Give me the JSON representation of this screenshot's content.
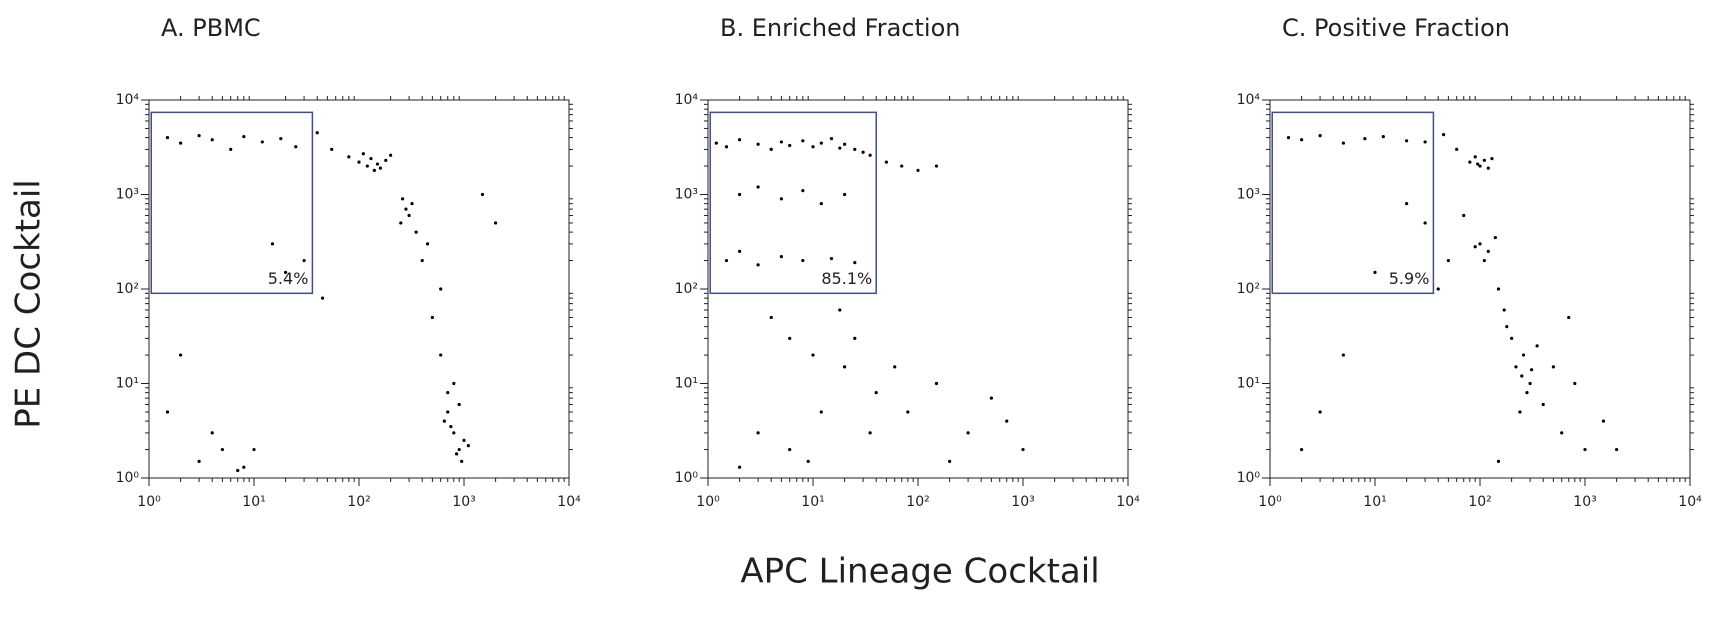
{
  "xlabel": "APC Lineage Cocktail",
  "ylabel": "PE  DC Cocktail",
  "chart_data": [
    {
      "type": "scatter",
      "title": "A.  PBMC",
      "color": "#000000",
      "xscale": "log",
      "yscale": "log",
      "xlim": [
        1,
        10000
      ],
      "ylim": [
        1,
        10000
      ],
      "xticks": [
        {
          "value": 1,
          "label": "10⁰"
        },
        {
          "value": 10,
          "label": "10¹"
        },
        {
          "value": 100,
          "label": "10²"
        },
        {
          "value": 1000,
          "label": "10³"
        },
        {
          "value": 10000,
          "label": "10⁴"
        }
      ],
      "yticks": [
        {
          "value": 1,
          "label": "10⁰"
        },
        {
          "value": 10,
          "label": "10¹"
        },
        {
          "value": 100,
          "label": "10²"
        },
        {
          "value": 1000,
          "label": "10³"
        },
        {
          "value": 10000,
          "label": "10⁴"
        }
      ],
      "minorticks": [
        2,
        3,
        4,
        5,
        6,
        7,
        8,
        9,
        20,
        30,
        40,
        50,
        60,
        70,
        80,
        90,
        200,
        300,
        400,
        500,
        600,
        700,
        800,
        900,
        2000,
        3000,
        4000,
        5000,
        6000,
        7000,
        8000,
        9000
      ],
      "gate": {
        "x": [
          1.05,
          36
        ],
        "y": [
          90,
          7400
        ],
        "label": "5.4%",
        "color": "#3c4e8c"
      },
      "x": [
        1.5,
        2,
        3,
        4,
        6,
        8,
        12,
        18,
        25,
        40,
        55,
        80,
        100,
        120,
        130,
        150,
        160,
        180,
        200,
        140,
        110,
        250,
        280,
        300,
        320,
        350,
        260,
        400,
        500,
        600,
        700,
        800,
        900,
        1000,
        750,
        850,
        650,
        950,
        1100,
        700,
        800,
        900,
        3,
        5,
        7,
        15,
        20,
        2,
        1.5,
        30,
        45,
        600,
        450,
        1500,
        2000,
        10,
        8,
        4
      ],
      "y": [
        4000,
        3500,
        4200,
        3800,
        3000,
        4100,
        3600,
        3900,
        3200,
        4500,
        3000,
        2500,
        2200,
        2000,
        2400,
        2100,
        1900,
        2300,
        2600,
        1800,
        2700,
        500,
        700,
        600,
        800,
        400,
        900,
        200,
        50,
        20,
        5,
        3,
        2,
        2.5,
        3.5,
        1.8,
        4,
        1.5,
        2.2,
        8,
        10,
        6,
        1.5,
        2,
        1.2,
        300,
        150,
        20,
        5,
        200,
        80,
        100,
        300,
        1000,
        500,
        2,
        1.3,
        3
      ]
    },
    {
      "type": "scatter",
      "title": "B.  Enriched Fraction",
      "color": "#000000",
      "xscale": "log",
      "yscale": "log",
      "xlim": [
        1,
        10000
      ],
      "ylim": [
        1,
        10000
      ],
      "xticks": [
        {
          "value": 1,
          "label": "10⁰"
        },
        {
          "value": 10,
          "label": "10¹"
        },
        {
          "value": 100,
          "label": "10²"
        },
        {
          "value": 1000,
          "label": "10³"
        },
        {
          "value": 10000,
          "label": "10⁴"
        }
      ],
      "yticks": [
        {
          "value": 1,
          "label": "10⁰"
        },
        {
          "value": 10,
          "label": "10¹"
        },
        {
          "value": 100,
          "label": "10²"
        },
        {
          "value": 1000,
          "label": "10³"
        },
        {
          "value": 10000,
          "label": "10⁴"
        }
      ],
      "minorticks": [
        2,
        3,
        4,
        5,
        6,
        7,
        8,
        9,
        20,
        30,
        40,
        50,
        60,
        70,
        80,
        90,
        200,
        300,
        400,
        500,
        600,
        700,
        800,
        900,
        2000,
        3000,
        4000,
        5000,
        6000,
        7000,
        8000,
        9000
      ],
      "gate": {
        "x": [
          1.05,
          40
        ],
        "y": [
          90,
          7400
        ],
        "label": "85.1%",
        "color": "#3c4e8c"
      },
      "x": [
        1.2,
        1.5,
        2,
        3,
        4,
        5,
        6,
        8,
        10,
        12,
        15,
        18,
        20,
        25,
        30,
        35,
        50,
        70,
        100,
        150,
        2,
        3,
        5,
        8,
        12,
        20,
        1.5,
        2,
        3,
        5,
        8,
        15,
        25,
        4,
        6,
        10,
        20,
        40,
        80,
        150,
        300,
        500,
        1000,
        3,
        6,
        12,
        25,
        60,
        200,
        700,
        2,
        9,
        18,
        35
      ],
      "y": [
        3500,
        3200,
        3800,
        3400,
        3000,
        3600,
        3300,
        3700,
        3200,
        3500,
        3900,
        3100,
        3400,
        3000,
        2800,
        2600,
        2200,
        2000,
        1800,
        2000,
        1000,
        1200,
        900,
        1100,
        800,
        1000,
        200,
        250,
        180,
        220,
        200,
        210,
        190,
        50,
        30,
        20,
        15,
        8,
        5,
        10,
        3,
        7,
        2,
        3,
        2,
        5,
        30,
        15,
        1.5,
        4,
        1.3,
        1.5,
        60,
        3
      ]
    },
    {
      "type": "scatter",
      "title": "C.  Positive Fraction",
      "color": "#000000",
      "xscale": "log",
      "yscale": "log",
      "xlim": [
        1,
        10000
      ],
      "ylim": [
        1,
        10000
      ],
      "xticks": [
        {
          "value": 1,
          "label": "10⁰"
        },
        {
          "value": 10,
          "label": "10¹"
        },
        {
          "value": 100,
          "label": "10²"
        },
        {
          "value": 1000,
          "label": "10³"
        },
        {
          "value": 10000,
          "label": "10⁴"
        }
      ],
      "yticks": [
        {
          "value": 1,
          "label": "10⁰"
        },
        {
          "value": 10,
          "label": "10¹"
        },
        {
          "value": 100,
          "label": "10²"
        },
        {
          "value": 1000,
          "label": "10³"
        },
        {
          "value": 10000,
          "label": "10⁴"
        }
      ],
      "minorticks": [
        2,
        3,
        4,
        5,
        6,
        7,
        8,
        9,
        20,
        30,
        40,
        50,
        60,
        70,
        80,
        90,
        200,
        300,
        400,
        500,
        600,
        700,
        800,
        900,
        2000,
        3000,
        4000,
        5000,
        6000,
        7000,
        8000,
        9000
      ],
      "gate": {
        "x": [
          1.05,
          36
        ],
        "y": [
          90,
          7400
        ],
        "label": "5.9%",
        "color": "#3c4e8c"
      },
      "x": [
        1.5,
        2,
        3,
        5,
        8,
        12,
        20,
        30,
        45,
        60,
        80,
        90,
        100,
        110,
        120,
        95,
        130,
        70,
        100,
        120,
        140,
        110,
        90,
        150,
        200,
        220,
        250,
        280,
        300,
        260,
        240,
        310,
        180,
        350,
        400,
        500,
        600,
        800,
        1000,
        2000,
        150,
        170,
        50,
        30,
        10,
        5,
        3,
        2,
        20,
        40,
        700,
        1500
      ],
      "y": [
        4000,
        3800,
        4200,
        3500,
        3900,
        4100,
        3700,
        3600,
        4300,
        3000,
        2200,
        2500,
        2000,
        2300,
        1900,
        2100,
        2400,
        600,
        300,
        250,
        350,
        200,
        280,
        100,
        30,
        15,
        12,
        8,
        10,
        20,
        5,
        14,
        40,
        25,
        6,
        15,
        3,
        10,
        2,
        2,
        1.5,
        60,
        200,
        500,
        150,
        20,
        5,
        2,
        800,
        100,
        50,
        4
      ]
    }
  ]
}
